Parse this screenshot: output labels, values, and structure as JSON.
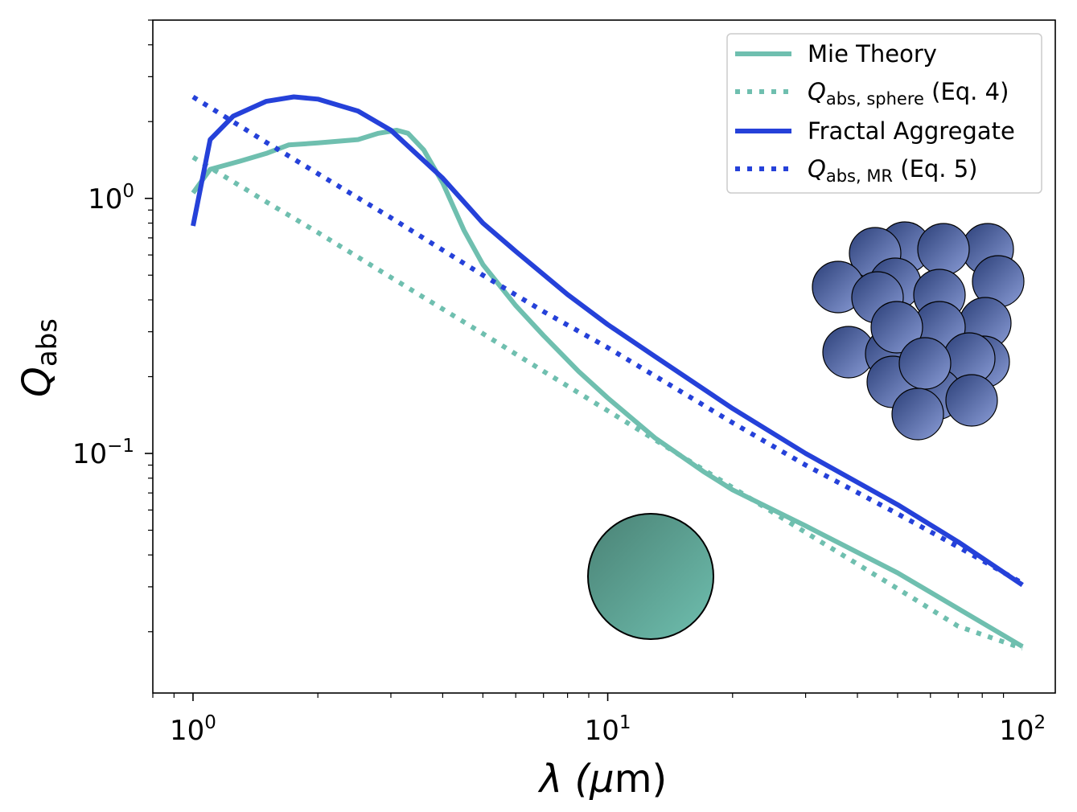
{
  "chart_data": {
    "type": "line",
    "title": "",
    "xscale": "log",
    "yscale": "log",
    "xlim": [
      0.8,
      120
    ],
    "ylim": [
      0.0115,
      5
    ],
    "xlabel": {
      "prefix": "λ (",
      "mu": "μ",
      "suffix": "m)"
    },
    "ylabel": {
      "main": "Q",
      "sub": "abs"
    },
    "x_ticks": [
      {
        "value": 1,
        "base": "10",
        "exp": "0"
      },
      {
        "value": 10,
        "base": "10",
        "exp": "1"
      },
      {
        "value": 100,
        "base": "10",
        "exp": "2"
      }
    ],
    "y_ticks": [
      {
        "value": 1,
        "base": "10",
        "exp": "0"
      },
      {
        "value": 0.1,
        "base": "10",
        "exp": "−1"
      }
    ],
    "legend_position": "top-right",
    "series": [
      {
        "id": "mie",
        "legend": {
          "main": "Mie Theory"
        },
        "color": "#6fbfaf",
        "dash": "solid",
        "x": [
          1.0,
          1.1,
          1.3,
          1.5,
          1.7,
          2.0,
          2.5,
          2.8,
          3.1,
          3.3,
          3.6,
          4.0,
          4.5,
          5.0,
          6.0,
          7.0,
          8.5,
          10,
          13,
          17,
          20,
          30,
          50,
          100
        ],
        "y": [
          1.05,
          1.3,
          1.4,
          1.5,
          1.62,
          1.65,
          1.7,
          1.8,
          1.85,
          1.8,
          1.55,
          1.15,
          0.75,
          0.55,
          0.38,
          0.29,
          0.21,
          0.165,
          0.115,
          0.085,
          0.072,
          0.052,
          0.034,
          0.0175
        ]
      },
      {
        "id": "q-sphere",
        "legend": {
          "main": "Q",
          "sub": "abs, sphere",
          "suffix": " (Eq. 4)"
        },
        "color": "#6fbfaf",
        "dash": "dotted",
        "x": [
          1.0,
          1.5,
          2,
          3,
          5,
          7,
          10,
          15,
          20,
          30,
          50,
          70,
          100
        ],
        "y": [
          1.45,
          0.97,
          0.735,
          0.49,
          0.295,
          0.21,
          0.147,
          0.098,
          0.0735,
          0.049,
          0.0295,
          0.021,
          0.0172
        ]
      },
      {
        "id": "fractal",
        "legend": {
          "main": "Fractal Aggregate"
        },
        "color": "#2541d9",
        "dash": "solid",
        "x": [
          1.0,
          1.1,
          1.25,
          1.5,
          1.75,
          2.0,
          2.5,
          3.0,
          4.0,
          5.0,
          6.0,
          8.0,
          10,
          13,
          20,
          30,
          50,
          70,
          100
        ],
        "y": [
          0.78,
          1.7,
          2.1,
          2.4,
          2.5,
          2.45,
          2.2,
          1.85,
          1.2,
          0.8,
          0.62,
          0.42,
          0.32,
          0.24,
          0.15,
          0.1,
          0.063,
          0.045,
          0.0305
        ]
      },
      {
        "id": "q-mr",
        "legend": {
          "main": "Q",
          "sub": "abs, MR",
          "suffix": " (Eq. 5)"
        },
        "color": "#2541d9",
        "dash": "dotted",
        "x": [
          1.0,
          1.5,
          2,
          3,
          5,
          7,
          10,
          15,
          20,
          30,
          50,
          70,
          100
        ],
        "y": [
          2.5,
          1.66,
          1.25,
          0.84,
          0.5,
          0.36,
          0.26,
          0.175,
          0.132,
          0.09,
          0.058,
          0.043,
          0.031
        ]
      }
    ]
  },
  "illustrations": {
    "sphere": {
      "icon": "sphere-particle-icon",
      "color_dark": "#4a8275",
      "color_light": "#6fbfaf"
    },
    "aggregate": {
      "icon": "fractal-aggregate-icon",
      "color_dark": "#2b3f78",
      "color_light": "#8a9cd6"
    }
  }
}
